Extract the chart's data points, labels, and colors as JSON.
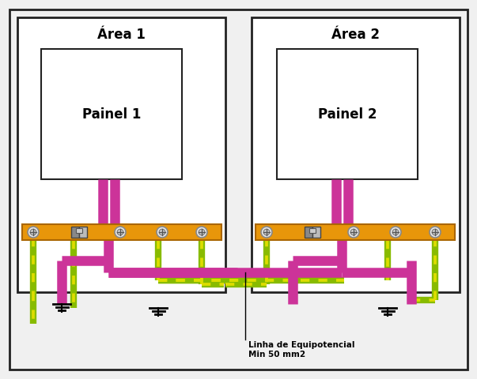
{
  "bg_color": "#f0f0f0",
  "dark": "#222222",
  "white": "#FFFFFF",
  "magenta": "#CC3399",
  "orange": "#E8960A",
  "orange_dark": "#AA6600",
  "green_base": "#88BB00",
  "yellow_stripe": "#DDDD00",
  "area1_label": "Área 1",
  "area2_label": "Área 2",
  "painel1_label": "Painel 1",
  "painel2_label": "Painel 2",
  "annotation": "Linha de Equipotencial\nMin 50 mm2",
  "fig_w": 6.03,
  "fig_h": 4.8,
  "dpi": 100
}
